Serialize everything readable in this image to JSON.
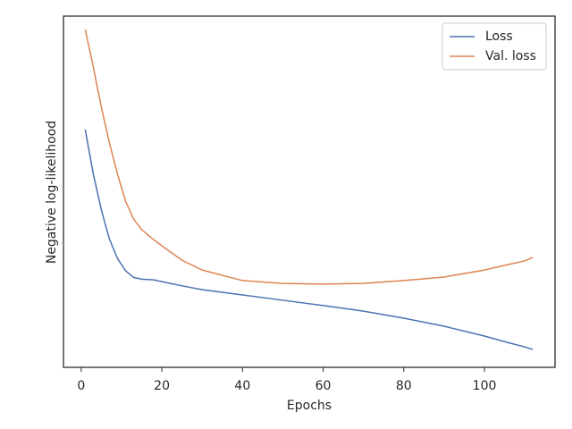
{
  "chart_data": {
    "type": "line",
    "xlabel": "Epochs",
    "ylabel": "Negative log-likelihood",
    "x": [
      1,
      3,
      5,
      7,
      9,
      11,
      13,
      15,
      18,
      20,
      25,
      30,
      40,
      50,
      60,
      70,
      80,
      90,
      100,
      106,
      110,
      112
    ],
    "series": [
      {
        "name": "Loss",
        "color": "#4c72b0",
        "values": [
          67.7,
          55,
          44.8,
          36.5,
          31,
          27.5,
          25.6,
          25.1,
          24.9,
          24.4,
          23.2,
          22.1,
          20.6,
          19.1,
          17.6,
          16,
          14,
          11.7,
          8.9,
          7,
          5.8,
          5.1
        ]
      },
      {
        "name": "Val. loss",
        "color": "#dd8452",
        "values": [
          96.2,
          85.5,
          74,
          63.9,
          55,
          47.3,
          42.2,
          39.2,
          36.3,
          34.6,
          30.5,
          27.7,
          24.7,
          23.9,
          23.7,
          23.9,
          24.7,
          25.7,
          27.7,
          29.3,
          30.3,
          31.3
        ]
      }
    ],
    "xlim": [
      -4.4,
      117.5
    ],
    "xticks": [
      0,
      20,
      40,
      60,
      80,
      100
    ],
    "ylim": [
      0,
      100
    ],
    "legend": "upper right",
    "grid": false
  }
}
